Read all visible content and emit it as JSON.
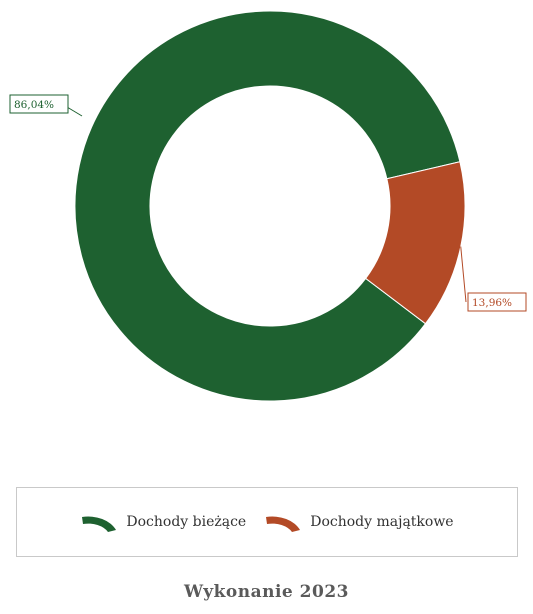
{
  "chart_data": {
    "type": "pie",
    "slices": [
      {
        "label": "Dochody bieżące",
        "value": 86.04,
        "display": "86,04%",
        "color": "#1e6130"
      },
      {
        "label": "Dochody majątkowe",
        "value": 13.96,
        "display": "13,96%",
        "color": "#b34a26"
      }
    ],
    "legend_position": "bottom",
    "caption": "Wykonanie 2023"
  }
}
